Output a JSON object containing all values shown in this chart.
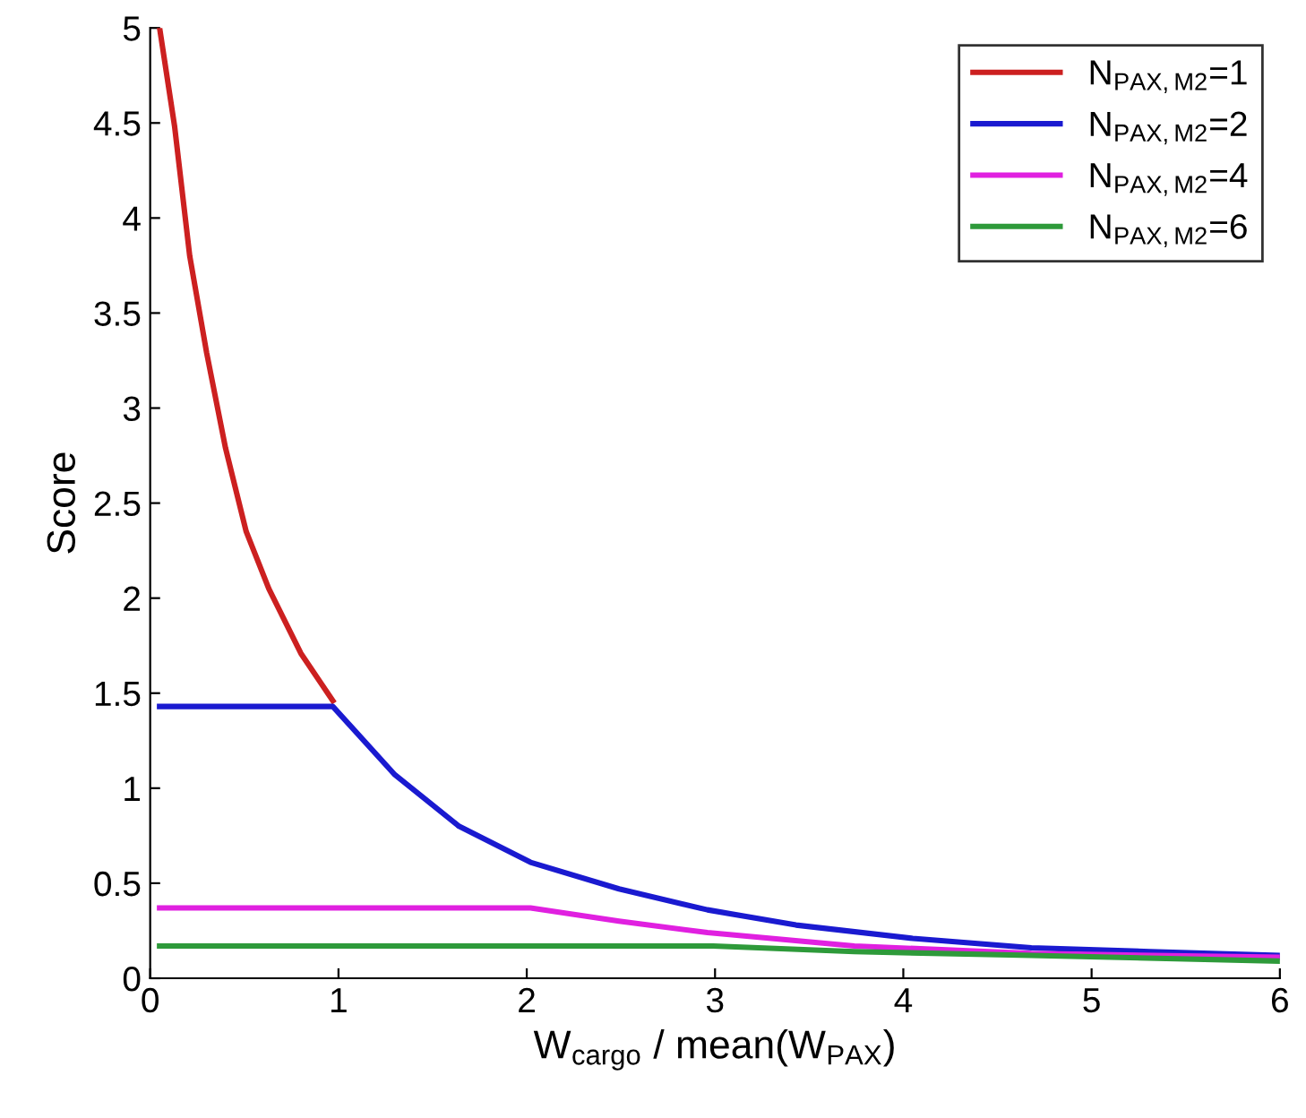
{
  "chart_data": {
    "type": "line",
    "xlabel": "W$_{cargo}$ / mean(W$_{PAX}$)",
    "ylabel": "Score",
    "xlim": [
      0,
      6
    ],
    "ylim": [
      0,
      5
    ],
    "xticks": [
      0,
      1,
      2,
      3,
      4,
      5,
      6
    ],
    "yticks": [
      0,
      0.5,
      1,
      1.5,
      2,
      2.5,
      3,
      3.5,
      4,
      4.5,
      5
    ],
    "grid": false,
    "legend": "top right",
    "marker": "none",
    "line_style": "solid",
    "series": [
      {
        "name": "N$_{PAX,M2}$=1",
        "color": "#cc2020",
        "x": [
          0.05,
          0.13,
          0.21,
          0.3,
          0.4,
          0.51,
          0.63,
          0.8,
          0.97
        ],
        "values": [
          5.0,
          4.48,
          3.8,
          3.29,
          2.79,
          2.35,
          2.05,
          1.71,
          1.46
        ]
      },
      {
        "name": "N$_{PAX,M2}$=2",
        "color": "#1a1ad0",
        "x": [
          0.05,
          0.97,
          1.3,
          1.64,
          2.02,
          2.49,
          2.96,
          3.43,
          4.05,
          4.68,
          5.31,
          6.0
        ],
        "values": [
          1.43,
          1.43,
          1.07,
          0.8,
          0.61,
          0.47,
          0.36,
          0.28,
          0.21,
          0.16,
          0.14,
          0.12
        ]
      },
      {
        "name": "N$_{PAX,M2}$=4",
        "color": "#e020e0",
        "x": [
          0.05,
          2.02,
          2.49,
          2.96,
          3.74,
          4.68,
          6.0
        ],
        "values": [
          0.37,
          0.37,
          0.3,
          0.24,
          0.17,
          0.13,
          0.11
        ]
      },
      {
        "name": "N$_{PAX,M2}$=6",
        "color": "#2e9a3a",
        "x": [
          0.05,
          2.99,
          3.74,
          4.68,
          6.0
        ],
        "values": [
          0.17,
          0.17,
          0.14,
          0.12,
          0.09
        ]
      }
    ]
  }
}
